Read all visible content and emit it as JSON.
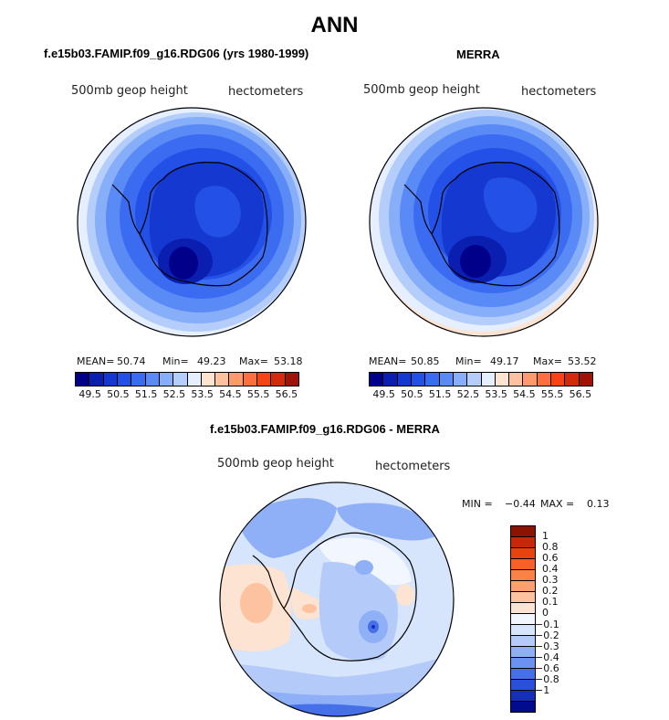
{
  "title": "ANN",
  "panels": [
    {
      "title": "f.e15b03.FAMIP.f09_g16.RDG06 (yrs 1980-1999)",
      "var_label": "500mb geop height",
      "units_label": "hectometers",
      "stats": {
        "mean_label": "MEAN=",
        "mean": "50.74",
        "min_label": "Min=",
        "min": "49.23",
        "max_label": "Max=",
        "max": "53.18"
      }
    },
    {
      "title": "MERRA",
      "var_label": "500mb geop height",
      "units_label": "hectometers",
      "stats": {
        "mean_label": "MEAN=",
        "mean": "50.85",
        "min_label": "Min=",
        "min": "49.17",
        "max_label": "Max=",
        "max": "53.52"
      }
    }
  ],
  "main_colorbar": {
    "colors": [
      "#00008b",
      "#0a1fb0",
      "#1538d0",
      "#2350e6",
      "#3a6bf0",
      "#5a8af5",
      "#86aef9",
      "#b4cdfb",
      "#e6efff",
      "#ffe3d1",
      "#ffc2a0",
      "#ff9a70",
      "#ff6d40",
      "#f64417",
      "#d22a10",
      "#9e1208"
    ],
    "ticks": [
      "49.5",
      "50.5",
      "51.5",
      "52.5",
      "53.5",
      "54.5",
      "55.5",
      "56.5"
    ]
  },
  "diff": {
    "title": "f.e15b03.FAMIP.f09_g16.RDG06 - MERRA",
    "var_label": "500mb geop height",
    "units_label": "hectometers",
    "min_label": "MIN =",
    "min": "−0.44",
    "max_label": "MAX =",
    "max": "0.13",
    "colorbar": {
      "colors": [
        "#8b1300",
        "#c42a05",
        "#e8420f",
        "#f66127",
        "#fb8145",
        "#fca06d",
        "#fdc3a0",
        "#fde3d1",
        "#f2f6ff",
        "#d6e4fc",
        "#b4cbfa",
        "#8fb0f6",
        "#6a92f1",
        "#4670ea",
        "#2a4fd9",
        "#1430b8",
        "#000c8b"
      ],
      "ticks": [
        "1",
        "0.8",
        "0.6",
        "0.4",
        "0.3",
        "0.2",
        "0.1",
        "0",
        "−0.1",
        "−0.2",
        "−0.3",
        "−0.4",
        "−0.6",
        "−0.8",
        "−1"
      ]
    }
  }
}
